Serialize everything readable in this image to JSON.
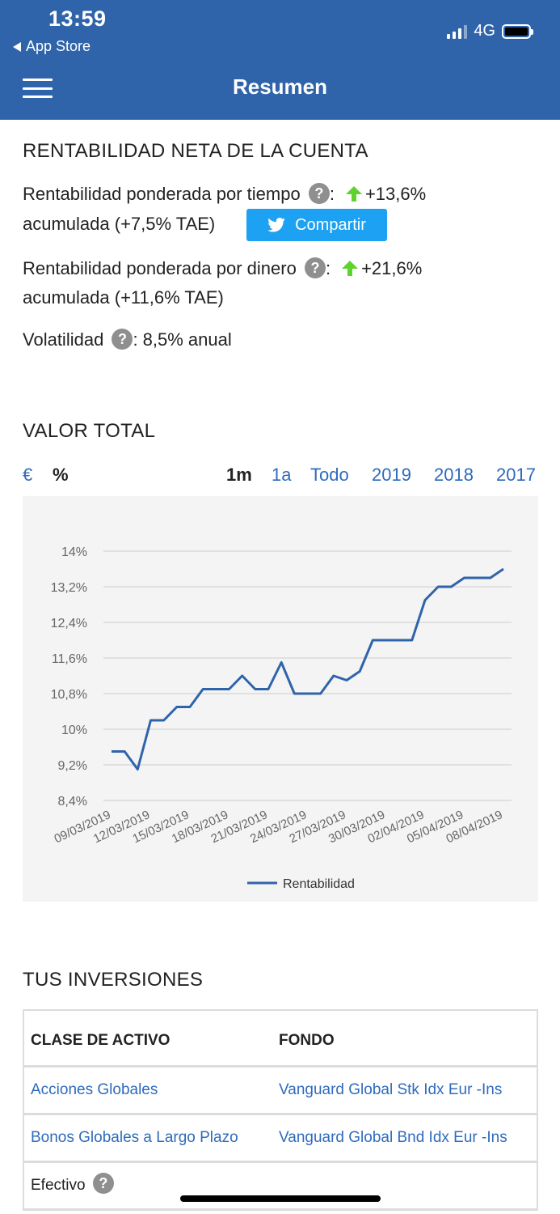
{
  "status": {
    "time": "13:59",
    "back_label": "App Store",
    "network": "4G"
  },
  "nav": {
    "title": "Resumen"
  },
  "rentabilidad": {
    "title": "RENTABILIDAD NETA DE LA CUENTA",
    "tiempo_label": "Rentabilidad ponderada por tiempo",
    "tiempo_value": "+13,6%",
    "tiempo_sub": "acumulada (+7,5% TAE)",
    "dinero_label": "Rentabilidad ponderada por dinero",
    "dinero_value": "+21,6%",
    "dinero_sub": "acumulada (+11,6% TAE)",
    "volatilidad_label": "Volatilidad",
    "volatilidad_value": ": 8,5% anual",
    "help_glyph": "?",
    "colon": ":",
    "share_label": "Compartir"
  },
  "valor_total": {
    "title": "VALOR TOTAL",
    "units": [
      "€",
      "%"
    ],
    "periods": [
      "1m",
      "1a",
      "Todo",
      "2019",
      "2018",
      "2017"
    ],
    "active_unit": "%",
    "active_period": "1m"
  },
  "chart_data": {
    "type": "line",
    "y_ticks": [
      "14%",
      "13,2%",
      "12,4%",
      "11,6%",
      "10,8%",
      "10%",
      "9,2%",
      "8,4%"
    ],
    "ylim": [
      8.4,
      14.0
    ],
    "x_tick_labels": [
      "09/03/2019",
      "12/03/2019",
      "15/03/2019",
      "18/03/2019",
      "21/03/2019",
      "24/03/2019",
      "27/03/2019",
      "30/03/2019",
      "02/04/2019",
      "05/04/2019",
      "08/04/2019"
    ],
    "series": [
      {
        "name": "Rentabilidad",
        "color": "#2f64aa",
        "values": [
          9.5,
          9.5,
          9.1,
          10.2,
          10.2,
          10.5,
          10.5,
          10.9,
          10.9,
          10.9,
          11.2,
          10.9,
          10.9,
          11.5,
          10.8,
          10.8,
          10.8,
          11.2,
          11.1,
          11.3,
          12.0,
          12.0,
          12.0,
          12.0,
          12.9,
          13.2,
          13.2,
          13.4,
          13.4,
          13.4,
          13.6
        ]
      }
    ],
    "grid": true,
    "legend": "bottom-center"
  },
  "inversiones": {
    "title": "TUS INVERSIONES",
    "headers": [
      "CLASE DE ACTIVO",
      "FONDO"
    ],
    "rows": [
      {
        "clase": "Acciones Globales",
        "fondo": "Vanguard Global Stk Idx Eur -Ins"
      },
      {
        "clase": "Bonos Globales a Largo Plazo",
        "fondo": "Vanguard Global Bnd Idx Eur -Ins"
      },
      {
        "clase": "Efectivo",
        "fondo": ""
      }
    ]
  }
}
